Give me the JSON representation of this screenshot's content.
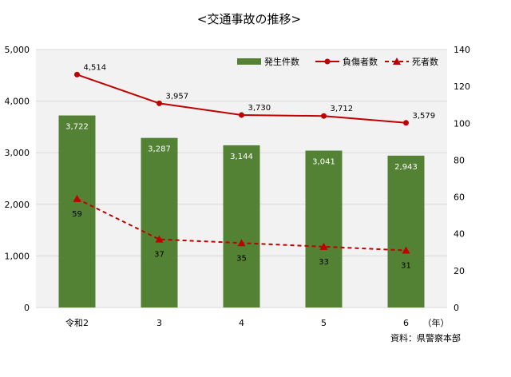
{
  "chart_data": {
    "type": "bar+line",
    "title": "<交通事故の推移>",
    "categories": [
      "令和2",
      "3",
      "4",
      "5",
      "6"
    ],
    "x_unit": "（年）",
    "bars": {
      "name": "発生件数",
      "values": [
        3722,
        3287,
        3144,
        3041,
        2943
      ],
      "labels": [
        "3,722",
        "3,287",
        "3,144",
        "3,041",
        "2,943"
      ],
      "color": "#548235"
    },
    "lines": [
      {
        "name": "負傷者数",
        "values": [
          4514,
          3957,
          3730,
          3712,
          3579
        ],
        "labels": [
          "4,514",
          "3,957",
          "3,730",
          "3,712",
          "3,579"
        ],
        "axis": "left",
        "color": "#c00000",
        "style": "solid",
        "marker": "circle"
      },
      {
        "name": "死者数",
        "values": [
          59,
          37,
          35,
          33,
          31
        ],
        "labels": [
          "59",
          "37",
          "35",
          "33",
          "31"
        ],
        "axis": "right",
        "color": "#c00000",
        "style": "dashed",
        "marker": "triangle"
      }
    ],
    "y_left": {
      "ylim": [
        0,
        5000
      ],
      "ticks": [
        0,
        1000,
        2000,
        3000,
        4000,
        5000
      ],
      "tick_labels": [
        "0",
        "1,000",
        "2,000",
        "3,000",
        "4,000",
        "5,000"
      ]
    },
    "y_right": {
      "ylim": [
        0,
        140
      ],
      "ticks": [
        0,
        20,
        40,
        60,
        80,
        100,
        120,
        140
      ],
      "tick_labels": [
        "0",
        "20",
        "40",
        "60",
        "80",
        "100",
        "120",
        "140"
      ]
    },
    "grid": true,
    "plot_background": "#f2f2f2",
    "grid_color": "#d9d9d9",
    "legend_position": "top-right",
    "source_note": "資料：県警察本部"
  }
}
